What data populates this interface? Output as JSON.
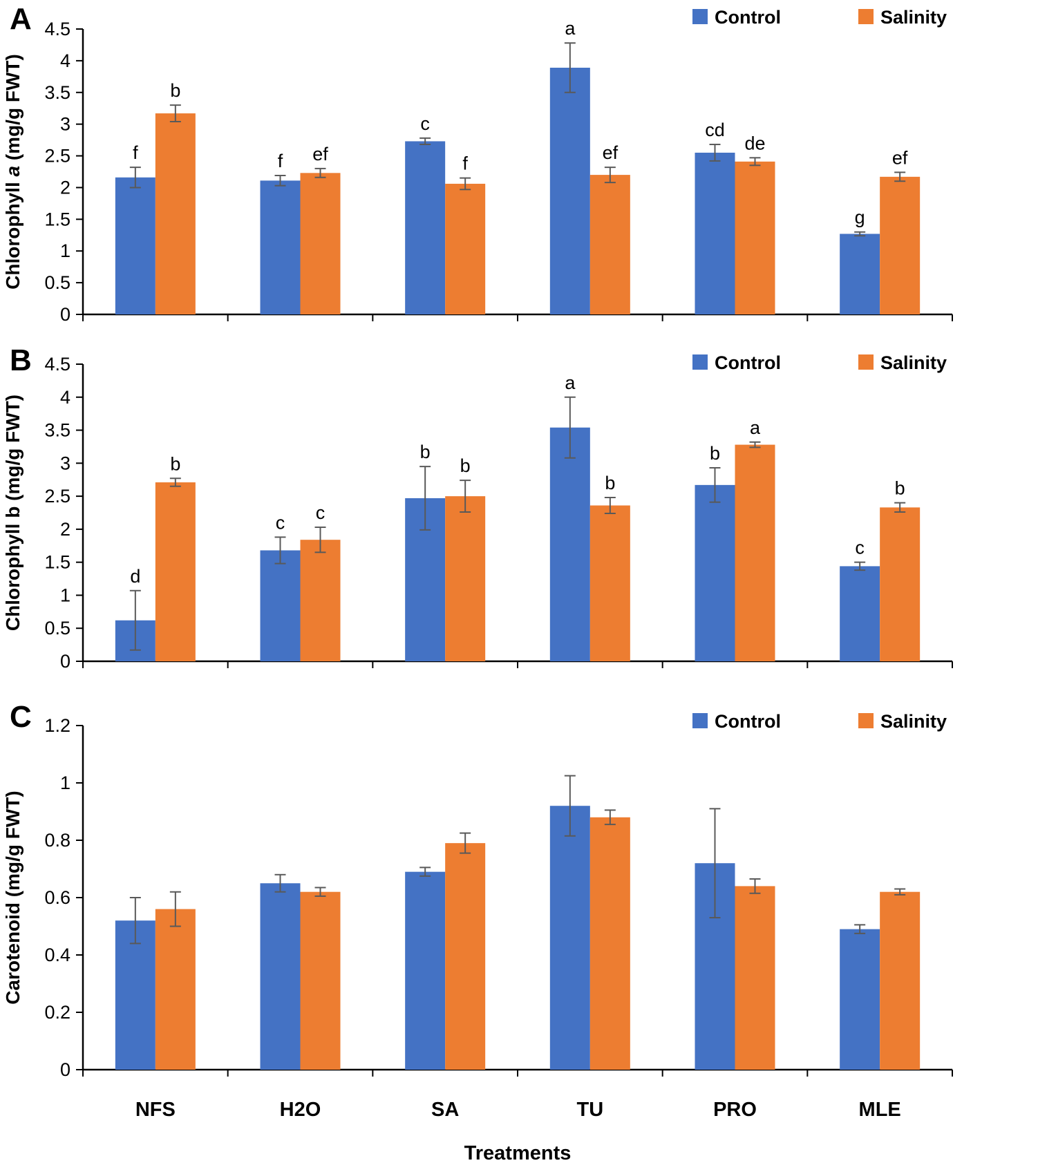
{
  "figure": {
    "xlabel": "Treatments",
    "legend": [
      {
        "label": "Control",
        "color": "#4472C4"
      },
      {
        "label": "Salinity",
        "color": "#ED7D31"
      }
    ],
    "error_bar_color": "#595959",
    "axis_color": "#000000"
  },
  "chart_data": [
    {
      "type": "bar",
      "panel": "A",
      "ylabel": "Chlorophyll a (mg/g FWT)",
      "ylabel_parts": [
        {
          "text": "Chlorophyll ",
          "italic": false
        },
        {
          "text": "a",
          "italic": true
        },
        {
          "text": " (mg/g FWT)",
          "italic": false
        }
      ],
      "ylim": [
        0,
        4.5
      ],
      "yticks": [
        0,
        0.5,
        1,
        1.5,
        2,
        2.5,
        3,
        3.5,
        4,
        4.5
      ],
      "ytick_labels": [
        "0",
        "0.5",
        "1",
        "1.5",
        "2",
        "2.5",
        "3",
        "3.5",
        "4",
        "4.5"
      ],
      "categories": [
        "NFS",
        "H2O",
        "SA",
        "TU",
        "PRO",
        "MLE"
      ],
      "grid": false,
      "legend_position": "top-right",
      "series": [
        {
          "name": "Control",
          "color": "#4472C4",
          "values": [
            2.16,
            2.11,
            2.73,
            3.89,
            2.55,
            1.27
          ],
          "errors": [
            0.16,
            0.08,
            0.05,
            0.39,
            0.13,
            0.03
          ],
          "letters": [
            "f",
            "f",
            "c",
            "a",
            "cd",
            "g"
          ]
        },
        {
          "name": "Salinity",
          "color": "#ED7D31",
          "values": [
            3.17,
            2.23,
            2.06,
            2.2,
            2.41,
            2.17
          ],
          "errors": [
            0.13,
            0.07,
            0.09,
            0.12,
            0.06,
            0.07
          ],
          "letters": [
            "b",
            "ef",
            "f",
            "ef",
            "de",
            "ef"
          ]
        }
      ]
    },
    {
      "type": "bar",
      "panel": "B",
      "ylabel": "Chlorophyll b (mg/g FWT)",
      "ylabel_parts": [
        {
          "text": "Chlorophyll b (mg/g FWT)",
          "italic": false
        }
      ],
      "ylim": [
        0,
        4.5
      ],
      "yticks": [
        0,
        0.5,
        1,
        1.5,
        2,
        2.5,
        3,
        3.5,
        4,
        4.5
      ],
      "ytick_labels": [
        "0",
        "0.5",
        "1",
        "1.5",
        "2",
        "2.5",
        "3",
        "3.5",
        "4",
        "4.5"
      ],
      "categories": [
        "NFS",
        "H2O",
        "SA",
        "TU",
        "PRO",
        "MLE"
      ],
      "grid": false,
      "legend_position": "top-right",
      "series": [
        {
          "name": "Control",
          "color": "#4472C4",
          "values": [
            0.62,
            1.68,
            2.47,
            3.54,
            2.67,
            1.44
          ],
          "errors": [
            0.45,
            0.2,
            0.48,
            0.46,
            0.26,
            0.06
          ],
          "letters": [
            "d",
            "c",
            "b",
            "a",
            "b",
            "c"
          ]
        },
        {
          "name": "Salinity",
          "color": "#ED7D31",
          "values": [
            2.71,
            1.84,
            2.5,
            2.36,
            3.28,
            2.33
          ],
          "errors": [
            0.06,
            0.19,
            0.24,
            0.12,
            0.04,
            0.07
          ],
          "letters": [
            "b",
            "c",
            "b",
            "b",
            "a",
            "b"
          ]
        }
      ]
    },
    {
      "type": "bar",
      "panel": "C",
      "ylabel": "Carotenoid (mg/g FWT)",
      "ylabel_parts": [
        {
          "text": "Carotenoid (mg/g FWT)",
          "italic": false
        }
      ],
      "ylim": [
        0,
        1.2
      ],
      "yticks": [
        0,
        0.2,
        0.4,
        0.6,
        0.8,
        1,
        1.2
      ],
      "ytick_labels": [
        "0",
        "0.2",
        "0.4",
        "0.6",
        "0.8",
        "1",
        "1.2"
      ],
      "categories": [
        "NFS",
        "H2O",
        "SA",
        "TU",
        "PRO",
        "MLE"
      ],
      "grid": false,
      "legend_position": "top-right",
      "xlabel": "Treatments",
      "series": [
        {
          "name": "Control",
          "color": "#4472C4",
          "values": [
            0.52,
            0.65,
            0.69,
            0.92,
            0.72,
            0.49
          ],
          "errors": [
            0.08,
            0.03,
            0.015,
            0.105,
            0.19,
            0.015
          ],
          "letters": [
            "",
            "",
            "",
            "",
            "",
            ""
          ]
        },
        {
          "name": "Salinity",
          "color": "#ED7D31",
          "values": [
            0.56,
            0.62,
            0.79,
            0.88,
            0.64,
            0.62
          ],
          "errors": [
            0.06,
            0.015,
            0.035,
            0.025,
            0.025,
            0.01
          ],
          "letters": [
            "",
            "",
            "",
            "",
            "",
            ""
          ]
        }
      ]
    }
  ]
}
